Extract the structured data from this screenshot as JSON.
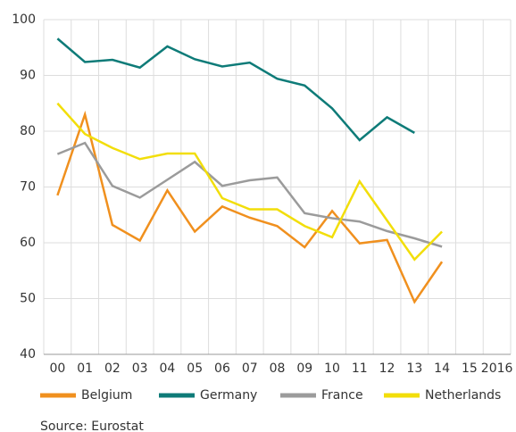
{
  "chart_data": {
    "type": "line",
    "categories": [
      "00",
      "01",
      "02",
      "03",
      "04",
      "05",
      "06",
      "07",
      "08",
      "09",
      "10",
      "11",
      "12",
      "13",
      "14",
      "15",
      "2016"
    ],
    "series": [
      {
        "name": "Belgium",
        "color": "#f0901e",
        "values": [
          68.5,
          83,
          63.2,
          60.4,
          69.4,
          62,
          66.5,
          64.5,
          63,
          59.2,
          65.7,
          59.9,
          60.5,
          49.4,
          56.6,
          null,
          null
        ]
      },
      {
        "name": "Germany",
        "color": "#0e7b78",
        "values": [
          96.6,
          92.4,
          92.8,
          91.4,
          95.2,
          92.9,
          91.6,
          92.3,
          89.4,
          88.2,
          84.1,
          78.4,
          82.5,
          79.7,
          null,
          null,
          null
        ]
      },
      {
        "name": "France",
        "color": "#9b9b9b",
        "values": [
          75.9,
          77.9,
          70.2,
          68.1,
          71.3,
          74.5,
          70.2,
          71.2,
          71.7,
          65.3,
          64.4,
          63.8,
          62.1,
          60.8,
          59.3,
          null,
          null
        ]
      },
      {
        "name": "Netherlands",
        "color": "#f2de0a",
        "values": [
          85,
          79.5,
          77,
          75,
          76,
          76,
          68,
          66,
          66,
          63,
          61,
          71,
          64,
          57,
          62,
          null,
          null
        ]
      }
    ],
    "ylim": [
      40,
      100
    ],
    "yticks": [
      40,
      50,
      60,
      70,
      80,
      90,
      100
    ],
    "grid": true,
    "source": "Source: Eurostat"
  }
}
